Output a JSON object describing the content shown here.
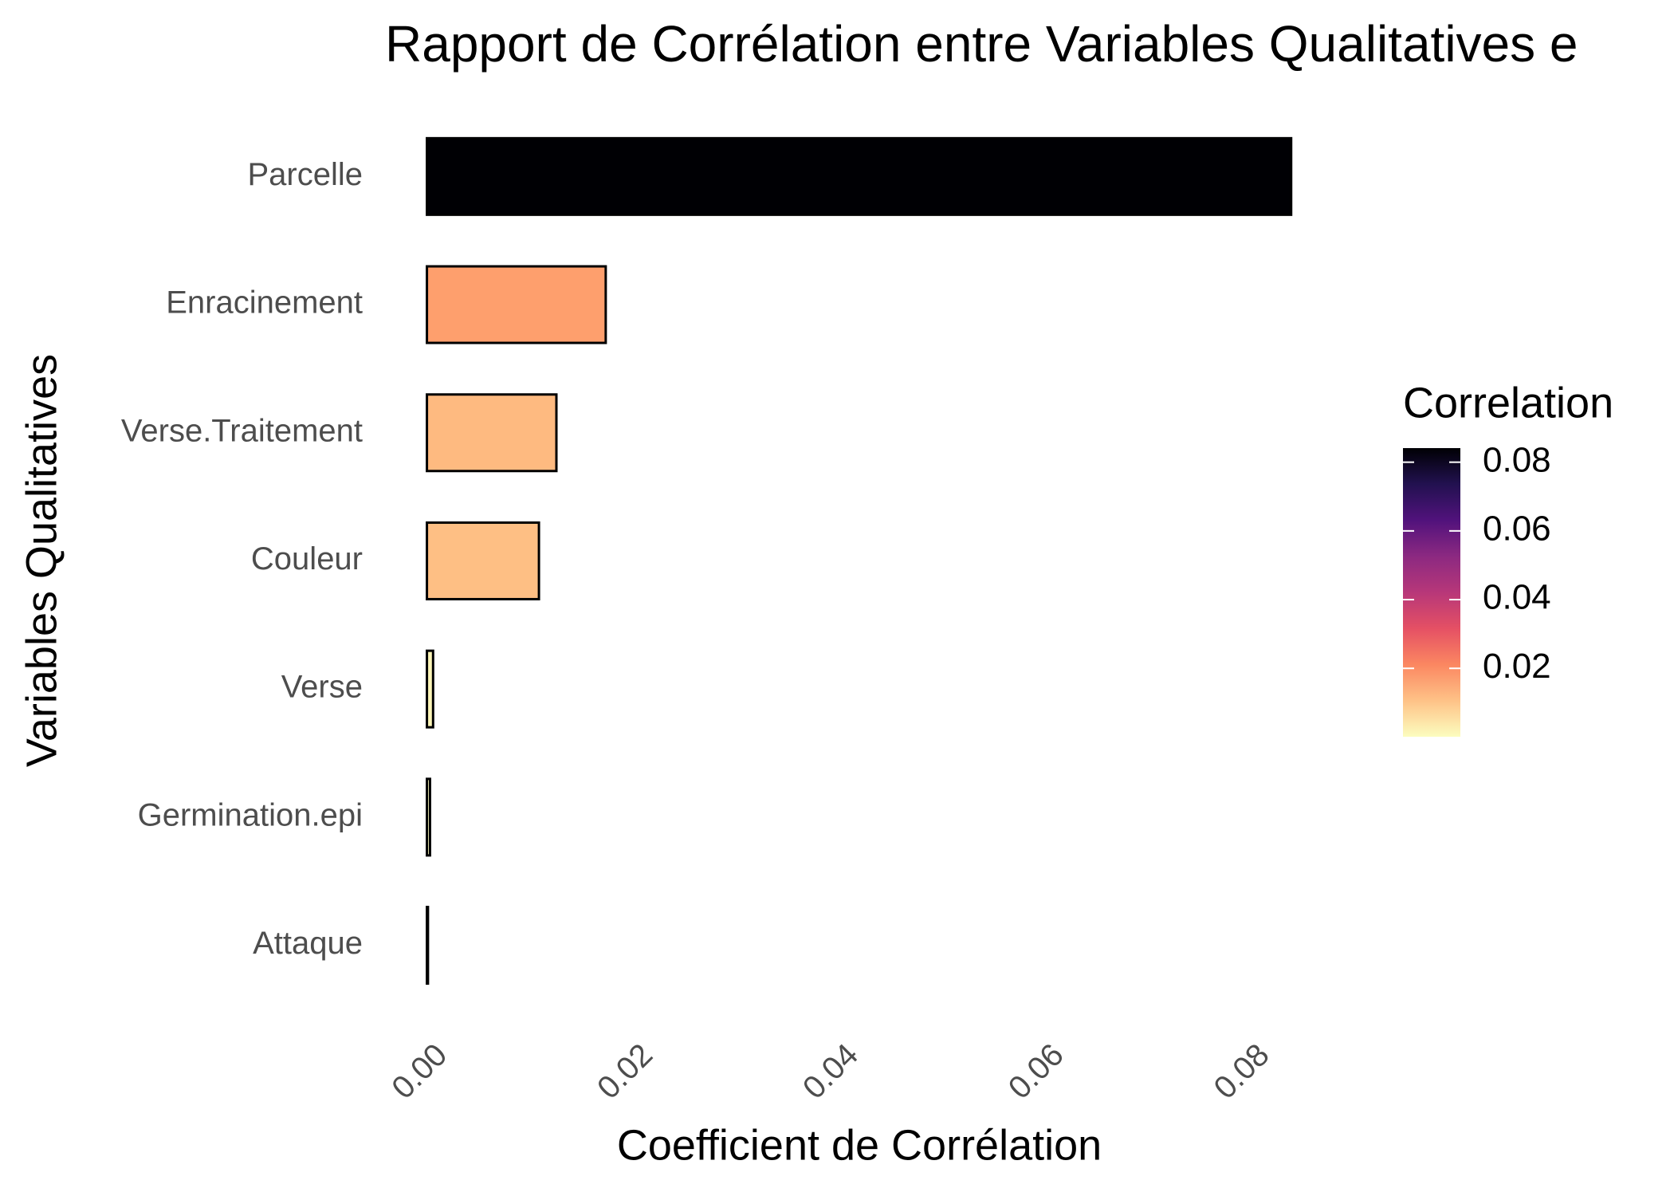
{
  "chart_data": {
    "type": "bar",
    "orientation": "horizontal",
    "title": "Rapport de Corrélation entre Variables Qualitatives e",
    "x_label": "Coefficient de Corrélation",
    "y_label": "Variables Qualitatives",
    "categories": [
      "Parcelle",
      "Enracinement",
      "Verse.Traitement",
      "Couleur",
      "Verse",
      "Germination.epi",
      "Attaque"
    ],
    "values": [
      0.0841,
      0.0174,
      0.0126,
      0.0109,
      0.0006,
      0.0003,
      0.0001
    ],
    "colors": [
      "#000004",
      "#fe9f6d",
      "#feba80",
      "#febf84",
      "#fcf6b8",
      "#fcf9bb",
      "#fcfdbf"
    ],
    "xlim": [
      -0.004,
      0.088
    ],
    "xticks": [
      {
        "value": 0,
        "label": "0.00"
      },
      {
        "value": 0.02,
        "label": "0.02"
      },
      {
        "value": 0.04,
        "label": "0.04"
      },
      {
        "value": 0.06,
        "label": "0.06"
      },
      {
        "value": 0.08,
        "label": "0.08"
      }
    ],
    "grid": false,
    "legend": {
      "title": "Correlation",
      "position": "right",
      "ticks": [
        0.02,
        0.04,
        0.06,
        0.08
      ],
      "colormap": [
        "#fcfdbf",
        "#fec287",
        "#fb8761",
        "#e55064",
        "#b73779",
        "#8c2981",
        "#51127c",
        "#221150",
        "#000004"
      ]
    }
  }
}
